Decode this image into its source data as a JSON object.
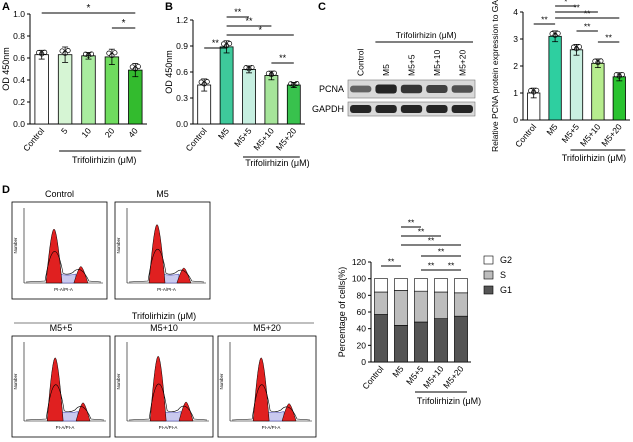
{
  "chart_data": [
    {
      "panel": "A",
      "type": "bar",
      "ylabel": "OD 450nm",
      "ylim": [
        0,
        1.0
      ],
      "yticks": [
        "0.0",
        "0.2",
        "0.4",
        "0.6",
        "0.8",
        "1.0"
      ],
      "categories": [
        "Control",
        "5",
        "10",
        "20",
        "40"
      ],
      "values": [
        0.63,
        0.63,
        0.62,
        0.61,
        0.49
      ],
      "errors": [
        0.04,
        0.07,
        0.03,
        0.07,
        0.06
      ],
      "colors": [
        "#ffffff",
        "#d6f5d4",
        "#a9ec9f",
        "#6fdc5e",
        "#33bb2e"
      ],
      "group_label": "Trifolirhizin (μM)",
      "sig": [
        "*",
        "*"
      ]
    },
    {
      "panel": "B",
      "type": "bar",
      "ylabel": "OD 450nm",
      "ylim": [
        0,
        1.2
      ],
      "yticks": [
        "0.0",
        "0.3",
        "0.6",
        "0.9",
        "1.2"
      ],
      "categories": [
        "Control",
        "M5",
        "M5+5",
        "M5+10",
        "M5+20"
      ],
      "values": [
        0.45,
        0.89,
        0.63,
        0.56,
        0.45
      ],
      "errors": [
        0.07,
        0.07,
        0.04,
        0.05,
        0.03
      ],
      "colors": [
        "#ffffff",
        "#3ec99b",
        "#c6efe0",
        "#a6e59a",
        "#38c24d"
      ],
      "group_label": "Trifolirhizin (μM)",
      "sig": [
        "**",
        "**",
        "**",
        "*",
        "**"
      ]
    },
    {
      "panel": "C",
      "type": "bar",
      "ylabel": "Relative PCNA protein expression to GAPDH",
      "ylim": [
        0,
        4
      ],
      "yticks": [
        "0",
        "1",
        "2",
        "3",
        "4"
      ],
      "categories": [
        "Control",
        "M5",
        "M5+5",
        "M5+10",
        "M5+20"
      ],
      "values": [
        1.0,
        3.1,
        2.6,
        2.1,
        1.6
      ],
      "errors": [
        0.18,
        0.2,
        0.2,
        0.16,
        0.15
      ],
      "colors": [
        "#ffffff",
        "#2ecfa0",
        "#c9efe1",
        "#b6ec8e",
        "#29c22f"
      ],
      "group_label": "Trifolirhizin (μM)",
      "sig": [
        "**",
        "*",
        "**",
        "**",
        "**",
        "**"
      ],
      "blot": {
        "lanes": [
          "Control",
          "M5",
          "M5+5",
          "M5+10",
          "M5+20"
        ],
        "group_label": "Trifolirhizin (μM)",
        "rows": [
          "PCNA",
          "GAPDH"
        ]
      }
    },
    {
      "panel": "D",
      "type": "bar",
      "subtype": "stacked",
      "ylabel": "Percentage of cells(%)",
      "ylim": [
        0,
        120
      ],
      "yticks": [
        "0",
        "20",
        "40",
        "60",
        "80",
        "100",
        "120"
      ],
      "categories": [
        "Control",
        "M5",
        "M5+5",
        "M5+10",
        "M5+20"
      ],
      "series": [
        {
          "name": "G1",
          "values": [
            57,
            44,
            48,
            52,
            55
          ],
          "color": "#555555"
        },
        {
          "name": "S",
          "values": [
            27,
            42,
            37,
            32,
            28
          ],
          "color": "#bdbdbd"
        },
        {
          "name": "G2",
          "values": [
            16,
            14,
            15,
            16,
            17
          ],
          "color": "#ffffff"
        }
      ],
      "legend_order": [
        "G2",
        "S",
        "G1"
      ],
      "group_label": "Trifolirhizin (μM)",
      "sig": [
        "**",
        "**",
        "**",
        "**",
        "**",
        "**",
        "**"
      ],
      "histograms": {
        "titles": [
          "Control",
          "M5",
          "M5+5",
          "M5+10",
          "M5+20"
        ],
        "group_label": "Trifolirhizin (μM)",
        "x_axis_label": "PI-A/PI-A",
        "y_axis_label": "Number"
      }
    }
  ]
}
